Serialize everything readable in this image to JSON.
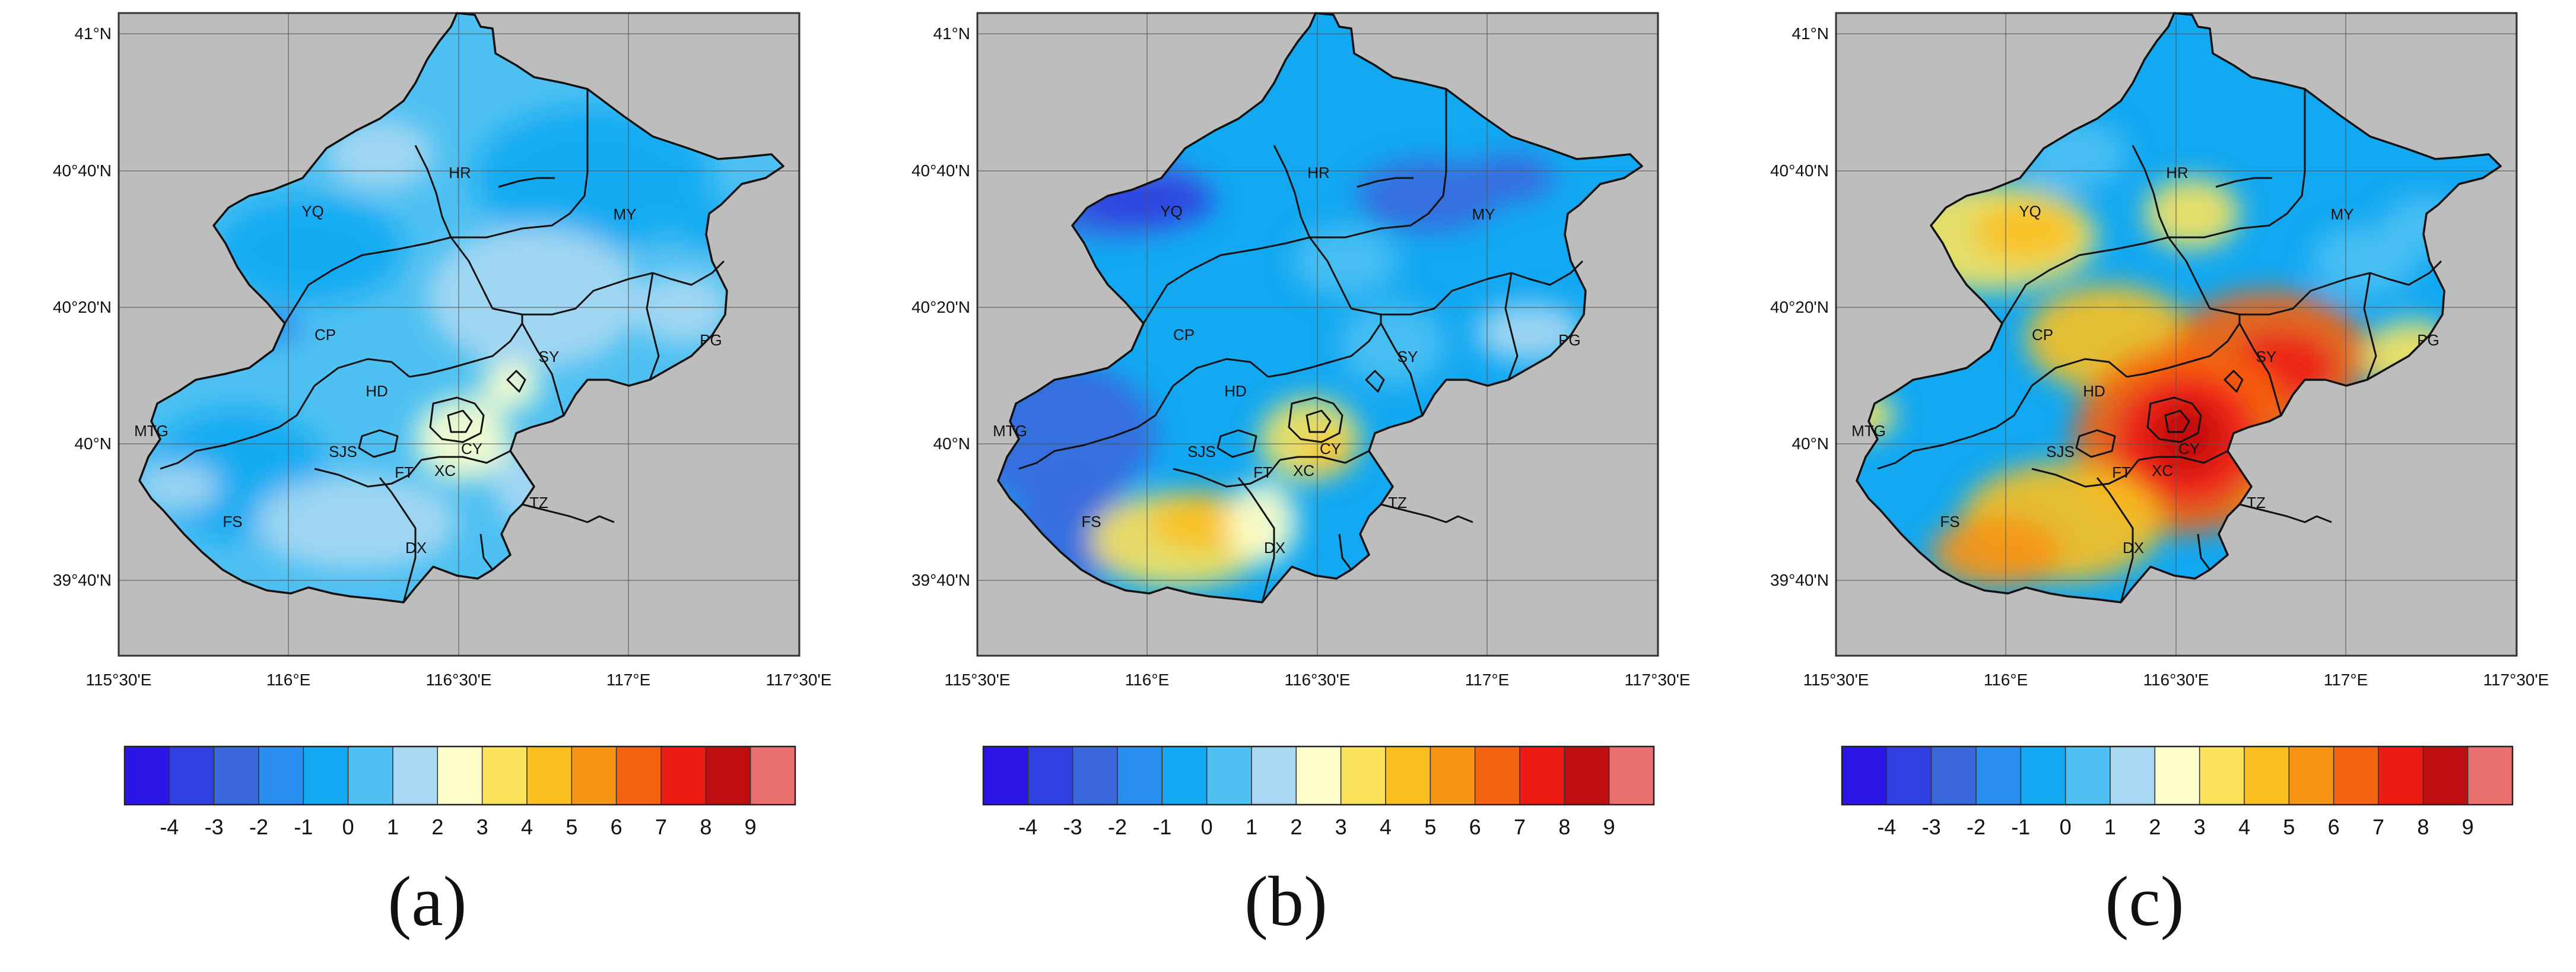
{
  "panels": [
    {
      "id": "a",
      "caption": "(a)",
      "scheme": "blue"
    },
    {
      "id": "b",
      "caption": "(b)",
      "scheme": "mixed"
    },
    {
      "id": "c",
      "caption": "(c)",
      "scheme": "hot"
    }
  ],
  "lat_labels": [
    "41°N",
    "40°40'N",
    "40°20'N",
    "40°N",
    "39°40'N"
  ],
  "lon_labels": [
    "115°30'E",
    "116°E",
    "116°30'E",
    "117°E",
    "117°30'E"
  ],
  "districts": [
    "YQ",
    "HR",
    "MY",
    "CP",
    "PG",
    "SY",
    "HD",
    "MTG",
    "SJS",
    "CY",
    "XC",
    "FT",
    "TZ",
    "FS",
    "DX"
  ],
  "colorbar": {
    "tick_labels": [
      "-4",
      "-3",
      "-2",
      "-1",
      "0",
      "1",
      "2",
      "3",
      "4",
      "5",
      "6",
      "7",
      "8",
      "9"
    ],
    "colors": [
      "#2a14e6",
      "#2f3fe0",
      "#3b68dc",
      "#2a8ef0",
      "#12a8f2",
      "#4ec0f2",
      "#a8d8f2",
      "#ffffcc",
      "#fbe45c",
      "#fbc020",
      "#f79414",
      "#f56410",
      "#ee1b14",
      "#be0e12",
      "#ea7070"
    ]
  }
}
